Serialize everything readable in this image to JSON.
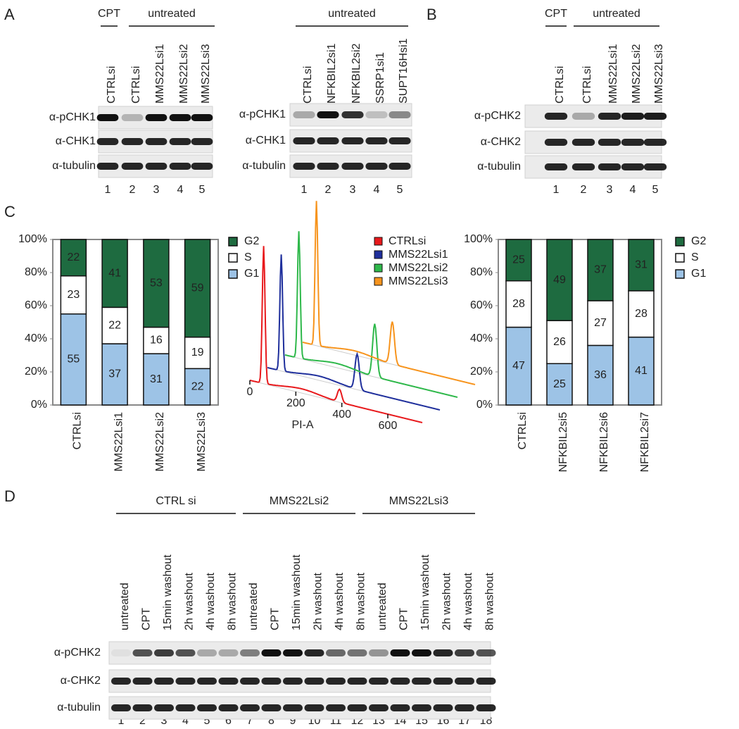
{
  "panels": {
    "A": {
      "letter": "A",
      "blot_left": {
        "groups": [
          "CPT",
          "untreated"
        ],
        "lanes": [
          "CTRLsi",
          "CTRLsi",
          "MMS22Lsi1",
          "MMS22Lsi2",
          "MMS22Lsi3"
        ],
        "rows": [
          "α-pCHK1",
          "α-CHK1",
          "α-tubulin"
        ],
        "lane_numbers": [
          1,
          2,
          3,
          4,
          5
        ]
      },
      "blot_right": {
        "groups": [
          "untreated"
        ],
        "lanes": [
          "CTRLsi",
          "NFKBIL2si1",
          "NFKBIL2si2",
          "SSRP1si1",
          "SUPT16Hsi1"
        ],
        "rows": [
          "α-pCHK1",
          "α-CHK1",
          "α-tubulin"
        ],
        "lane_numbers": [
          1,
          2,
          3,
          4,
          5
        ]
      }
    },
    "B": {
      "letter": "B",
      "blot": {
        "groups": [
          "CPT",
          "untreated"
        ],
        "lanes": [
          "CTRLsi",
          "CTRLsi",
          "MMS22Lsi1",
          "MMS22Lsi2",
          "MMS22Lsi3"
        ],
        "rows": [
          "α-pCHK2",
          "α-CHK2",
          "α-tubulin"
        ],
        "lane_numbers": [
          1,
          2,
          3,
          4,
          5
        ]
      }
    },
    "C": {
      "letter": "C",
      "histogram": {
        "x_label": "PI-A",
        "xticks": [
          0,
          200,
          400,
          600
        ],
        "legend": [
          {
            "name": "CTRLsi",
            "color": "#e8191c"
          },
          {
            "name": "MMS22Lsi1",
            "color": "#1f2f9c"
          },
          {
            "name": "MMS22Lsi2",
            "color": "#2eb84a"
          },
          {
            "name": "MMS22Lsi3",
            "color": "#f7941d"
          }
        ]
      }
    },
    "D": {
      "letter": "D",
      "blot": {
        "groups": [
          "CTRL si",
          "MMS22Lsi2",
          "MMS22Lsi3"
        ],
        "lanes": [
          "untreated",
          "CPT",
          "15min washout",
          "2h washout",
          "4h washout",
          "8h washout",
          "untreated",
          "CPT",
          "15min washout",
          "2h washout",
          "4h washout",
          "8h washout",
          "untreated",
          "CPT",
          "15min washout",
          "2h washout",
          "4h washout",
          "8h washout"
        ],
        "rows": [
          "α-pCHK2",
          "α-CHK2",
          "α-tubulin"
        ],
        "lane_numbers": [
          1,
          2,
          3,
          4,
          5,
          6,
          7,
          8,
          9,
          10,
          11,
          12,
          13,
          14,
          15,
          16,
          17,
          18
        ]
      }
    }
  },
  "chart_data": [
    {
      "type": "stacked_bar",
      "categories": [
        "CTRLsi",
        "MMS22Lsi1",
        "MMS22Lsi2",
        "MMS22Lsi3"
      ],
      "series": [
        {
          "name": "G1",
          "color": "#9dc3e6",
          "values": [
            55,
            37,
            31,
            22
          ]
        },
        {
          "name": "S",
          "color": "#ffffff",
          "values": [
            23,
            22,
            16,
            19
          ]
        },
        {
          "name": "G2",
          "color": "#1e6b40",
          "values": [
            22,
            41,
            53,
            59
          ]
        }
      ],
      "ylim": [
        0,
        100
      ],
      "yticks": [
        {
          "value": 0,
          "label": "0%"
        },
        {
          "value": 20,
          "label": "20%"
        },
        {
          "value": 40,
          "label": "40%"
        },
        {
          "value": 60,
          "label": "60%"
        },
        {
          "value": 80,
          "label": "80%"
        },
        {
          "value": 100,
          "label": "100%"
        }
      ],
      "grid": false,
      "legend": "right"
    },
    {
      "type": "stacked_bar",
      "categories": [
        "CTRLsi",
        "NFKBIL2si5",
        "NFKBIL2si6",
        "NFKBIL2si7"
      ],
      "series": [
        {
          "name": "G1",
          "color": "#9dc3e6",
          "values": [
            47,
            25,
            36,
            41
          ]
        },
        {
          "name": "S",
          "color": "#ffffff",
          "values": [
            28,
            26,
            27,
            28
          ]
        },
        {
          "name": "G2",
          "color": "#1e6b40",
          "values": [
            25,
            49,
            37,
            31
          ]
        }
      ],
      "ylim": [
        0,
        100
      ],
      "yticks": [
        {
          "value": 0,
          "label": "0%"
        },
        {
          "value": 20,
          "label": "20%"
        },
        {
          "value": 40,
          "label": "40%"
        },
        {
          "value": 60,
          "label": "60%"
        },
        {
          "value": 80,
          "label": "80%"
        },
        {
          "value": 100,
          "label": "100%"
        }
      ],
      "grid": false,
      "legend": "right"
    }
  ]
}
